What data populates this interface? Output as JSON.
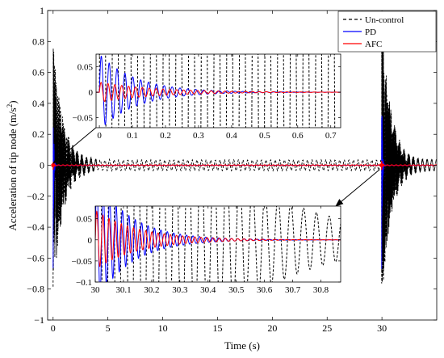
{
  "colors": {
    "uncontrol": "#000000",
    "pd": "#0000ff",
    "afc": "#ff0000",
    "axis": "#000000",
    "background": "#ffffff"
  },
  "chart_data": [
    {
      "id": "main",
      "type": "line",
      "xlabel": "Time (s)",
      "ylabel": "Acceleration of tip node (m/s",
      "ylabel_sup": "2",
      "ylabel_close": ")",
      "xlim": [
        -0.5,
        35
      ],
      "ylim": [
        -1,
        1
      ],
      "x_ticks": [
        0,
        5,
        10,
        15,
        20,
        25,
        30
      ],
      "y_ticks": [
        -1,
        -0.8,
        -0.6,
        -0.4,
        -0.2,
        0,
        0.2,
        0.4,
        0.6,
        0.8,
        1
      ],
      "grid": false,
      "legend_position": "top-right",
      "legend": [
        "Un-control",
        "PD",
        "AFC"
      ],
      "series": [
        {
          "name": "Un-control",
          "style": "dashed",
          "color": "#000000",
          "bursts": [
            {
              "t0": 0,
              "amp": 0.8,
              "decay": 1.1
            },
            {
              "t0": 29.97,
              "amp": 0.95,
              "decay": 1.2
            }
          ],
          "steady_amp": 0.035,
          "period": 0.42
        },
        {
          "name": "PD",
          "style": "solid",
          "color": "#0000ff",
          "bursts": [
            {
              "t0": 0,
              "amp": 0.68,
              "decay": 18
            },
            {
              "t0": 29.97,
              "amp": 0.83,
              "decay": 18
            }
          ],
          "steady_amp": 0.0
        },
        {
          "name": "AFC",
          "style": "solid",
          "color": "#ff0000",
          "bursts": [
            {
              "t0": 0,
              "amp": 0.03,
              "decay": 20
            },
            {
              "t0": 29.97,
              "amp": 0.04,
              "decay": 20
            }
          ],
          "steady_amp": 0.003
        }
      ]
    },
    {
      "id": "inset-top",
      "type": "line",
      "xlim": [
        -0.01,
        0.73
      ],
      "ylim": [
        -0.07,
        0.075
      ],
      "x_ticks": [
        0,
        0.1,
        0.2,
        0.3,
        0.4,
        0.5,
        0.6,
        0.7
      ],
      "y_ticks": [
        -0.05,
        0,
        0.05
      ],
      "series": [
        {
          "name": "Un-control",
          "t0": 0,
          "amp": 0.9,
          "freq": 26,
          "decay": 0.3
        },
        {
          "name": "PD",
          "t0": 0,
          "amp": 0.075,
          "freq": 42,
          "decay": 9
        },
        {
          "name": "AFC",
          "t0": 0,
          "amp": 0.02,
          "freq": 48,
          "decay": 6
        }
      ]
    },
    {
      "id": "inset-bottom",
      "type": "line",
      "xlim": [
        30,
        30.87
      ],
      "ylim": [
        -0.1,
        0.08
      ],
      "x_ticks": [
        30,
        30.1,
        30.2,
        30.3,
        30.4,
        30.5,
        30.6,
        30.7,
        30.8
      ],
      "y_ticks": [
        -0.1,
        -0.05,
        0,
        0.05
      ],
      "series": [
        {
          "name": "Un-control",
          "t0": 30,
          "amp": 0.8,
          "freq": 22,
          "decay": 3.2
        },
        {
          "name": "PD",
          "t0": 30,
          "amp": 0.15,
          "freq": 44,
          "decay": 8
        },
        {
          "name": "AFC",
          "t0": 30,
          "amp": 0.07,
          "freq": 46,
          "decay": 6.5
        }
      ]
    }
  ]
}
